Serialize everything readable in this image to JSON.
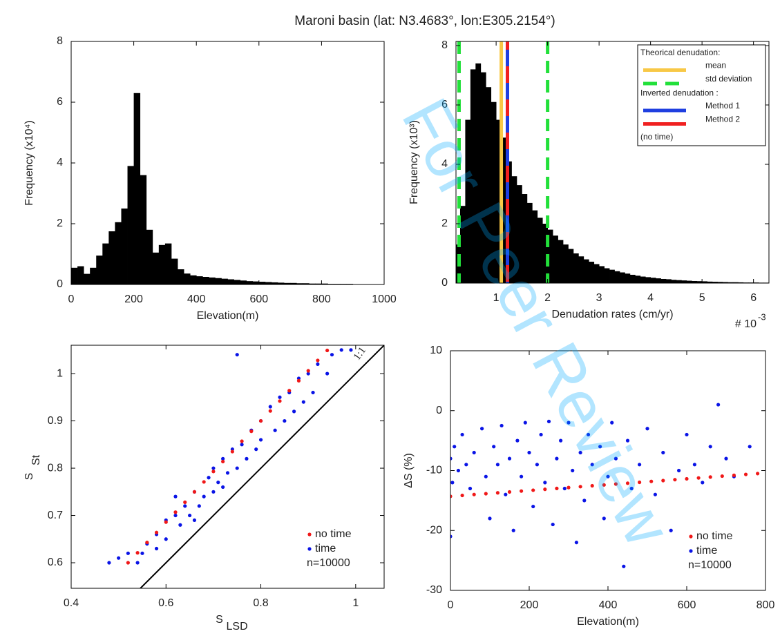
{
  "title": "Maroni basin (lat: N3.4683°, lon:E305.2154°)",
  "watermark": "For Peer Review",
  "chart_data": [
    {
      "type": "histogram",
      "xlabel": "Elevation(m)",
      "ylabel": "Frequency (x10⁴)",
      "color": "#000000",
      "xlim": [
        0,
        1000
      ],
      "ylim": [
        0,
        8
      ],
      "xticks": [
        0,
        200,
        400,
        600,
        800,
        1000
      ],
      "yticks": [
        0,
        2,
        4,
        6,
        8
      ],
      "bins": [
        0,
        20,
        40,
        60,
        80,
        100,
        120,
        140,
        160,
        180,
        200,
        220,
        240,
        260,
        280,
        300,
        320,
        340,
        360,
        380,
        400,
        420,
        440,
        460,
        480,
        500,
        520,
        540,
        560,
        580,
        600,
        620,
        640,
        660,
        680,
        700,
        720,
        740,
        760,
        780,
        800,
        820,
        840,
        860,
        880,
        900,
        920,
        940,
        960,
        980,
        1000
      ],
      "values": [
        0.55,
        0.6,
        0.35,
        0.55,
        0.95,
        1.35,
        1.75,
        2.05,
        2.5,
        3.9,
        6.3,
        3.6,
        1.8,
        1.05,
        1.3,
        1.35,
        0.85,
        0.5,
        0.36,
        0.3,
        0.27,
        0.25,
        0.23,
        0.21,
        0.19,
        0.17,
        0.15,
        0.13,
        0.11,
        0.1,
        0.09,
        0.08,
        0.07,
        0.06,
        0.05,
        0.05,
        0.04,
        0.04,
        0.03,
        0.03,
        0.03,
        0.02,
        0.02,
        0.02,
        0.02,
        0.01,
        0.01,
        0.01,
        0.01,
        0.01
      ]
    },
    {
      "type": "histogram",
      "xlabel": "Denudation rates (cm/yr)",
      "ylabel": "Frequency (x10³)",
      "color": "#000000",
      "x_multiplier": "# 10",
      "x_multiplier_exp": "-3",
      "xlim": [
        0.22,
        6.3
      ],
      "ylim": [
        0,
        8.14
      ],
      "xticks": [
        1,
        2,
        3,
        4,
        5,
        6
      ],
      "yticks": [
        0,
        2,
        4,
        6,
        8
      ],
      "bins": [
        0.2,
        0.3,
        0.4,
        0.5,
        0.6,
        0.7,
        0.8,
        0.9,
        1.0,
        1.1,
        1.2,
        1.3,
        1.4,
        1.5,
        1.6,
        1.7,
        1.8,
        1.9,
        2.0,
        2.1,
        2.2,
        2.3,
        2.4,
        2.5,
        2.6,
        2.7,
        2.8,
        2.9,
        3.0,
        3.1,
        3.2,
        3.3,
        3.4,
        3.5,
        3.6,
        3.7,
        3.8,
        3.9,
        4.0,
        4.1,
        4.2,
        4.3,
        4.4,
        4.5,
        4.6,
        4.7,
        4.8,
        4.9,
        5.0,
        5.1,
        5.2,
        5.3,
        5.4,
        5.5,
        5.6,
        5.7,
        5.8,
        5.9,
        6.0,
        6.1,
        6.2,
        6.3
      ],
      "values": [
        1.3,
        2.6,
        5.5,
        7.2,
        7.4,
        7.1,
        6.6,
        6.1,
        5.5,
        4.9,
        4.1,
        3.6,
        3.3,
        3.0,
        2.7,
        2.45,
        2.2,
        2.0,
        1.8,
        1.6,
        1.45,
        1.3,
        1.15,
        1.0,
        0.9,
        0.8,
        0.72,
        0.64,
        0.57,
        0.5,
        0.45,
        0.4,
        0.36,
        0.32,
        0.28,
        0.25,
        0.22,
        0.2,
        0.18,
        0.16,
        0.14,
        0.13,
        0.11,
        0.1,
        0.09,
        0.08,
        0.07,
        0.065,
        0.06,
        0.05,
        0.045,
        0.04,
        0.035,
        0.03,
        0.03,
        0.025,
        0.02,
        0.02,
        0.02,
        0.015,
        0.015
      ],
      "legend_headers": [
        "Theorical denudation:",
        "Inverted denudation :"
      ],
      "legend_note": "(no time)",
      "vlines": [
        {
          "name": "mean",
          "values": [
            1.1
          ],
          "color": "#f8c846",
          "style": "solid"
        },
        {
          "name": "std deviation",
          "values": [
            0.28,
            2.0
          ],
          "color": "#22e03a",
          "style": "dashed"
        },
        {
          "name": "Method 1",
          "values": [
            1.22
          ],
          "color": "#1f3fe0",
          "style": "solid"
        },
        {
          "name": "Method 2",
          "values": [
            1.22
          ],
          "color": "#f02020",
          "style": "dashed"
        }
      ]
    },
    {
      "type": "scatter",
      "xlabel": "S",
      "xlabel_sub": "LSD",
      "ylabel": "S",
      "ylabel_sub": "St",
      "xlim": [
        0.4,
        1.06
      ],
      "ylim": [
        0.546,
        1.06
      ],
      "xticks": [
        0.4,
        0.6,
        0.8,
        1
      ],
      "yticks": [
        0.6,
        0.7,
        0.8,
        0.9,
        1
      ],
      "reference_line": "1:1",
      "annotation": "n=10000",
      "series": [
        {
          "name": "time",
          "color": "#0a14e6",
          "x": [
            0.48,
            0.5,
            0.52,
            0.55,
            0.56,
            0.58,
            0.6,
            0.6,
            0.62,
            0.63,
            0.64,
            0.65,
            0.66,
            0.67,
            0.68,
            0.69,
            0.7,
            0.7,
            0.71,
            0.72,
            0.73,
            0.74,
            0.75,
            0.75,
            0.76,
            0.77,
            0.78,
            0.79,
            0.8,
            0.8,
            0.82,
            0.83,
            0.84,
            0.85,
            0.86,
            0.87,
            0.88,
            0.89,
            0.9,
            0.91,
            0.92,
            0.94,
            0.95,
            0.97,
            0.99,
            0.62,
            0.66,
            0.72,
            0.58,
            0.54
          ],
          "values": [
            0.6,
            0.61,
            0.62,
            0.62,
            0.64,
            0.66,
            0.65,
            0.69,
            0.7,
            0.68,
            0.72,
            0.7,
            0.75,
            0.72,
            0.74,
            0.78,
            0.75,
            0.8,
            0.77,
            0.82,
            0.79,
            0.84,
            0.8,
            1.04,
            0.85,
            0.82,
            0.88,
            0.84,
            0.9,
            0.86,
            0.93,
            0.88,
            0.95,
            0.9,
            0.96,
            0.92,
            0.99,
            0.94,
            1.0,
            0.96,
            1.02,
            1.0,
            1.04,
            1.05,
            1.05,
            0.74,
            0.69,
            0.76,
            0.63,
            0.6
          ]
        },
        {
          "name": "no time",
          "color": "#f01818",
          "x": [
            0.52,
            0.54,
            0.56,
            0.58,
            0.6,
            0.62,
            0.64,
            0.66,
            0.68,
            0.7,
            0.72,
            0.74,
            0.76,
            0.78,
            0.8,
            0.82,
            0.84,
            0.86,
            0.88,
            0.9,
            0.92,
            0.94
          ],
          "values": [
            0.6,
            0.621,
            0.643,
            0.664,
            0.686,
            0.707,
            0.728,
            0.75,
            0.771,
            0.793,
            0.814,
            0.835,
            0.857,
            0.878,
            0.9,
            0.921,
            0.942,
            0.964,
            0.985,
            1.006,
            1.028,
            1.049
          ]
        }
      ]
    },
    {
      "type": "scatter",
      "xlabel": "Elevation(m)",
      "ylabel": "ΔS (%)",
      "xlim": [
        0,
        800
      ],
      "ylim": [
        -30,
        10
      ],
      "xticks": [
        0,
        200,
        400,
        600,
        800
      ],
      "yticks": [
        -30,
        -20,
        -10,
        0,
        10
      ],
      "annotation": "n=10000",
      "series": [
        {
          "name": "time",
          "color": "#0a14e6",
          "x": [
            0,
            0,
            5,
            10,
            20,
            30,
            40,
            50,
            60,
            80,
            90,
            100,
            110,
            120,
            130,
            140,
            150,
            160,
            170,
            180,
            190,
            200,
            210,
            220,
            230,
            240,
            250,
            260,
            270,
            280,
            290,
            300,
            310,
            320,
            330,
            340,
            350,
            360,
            380,
            390,
            400,
            410,
            420,
            440,
            450,
            460,
            480,
            500,
            520,
            540,
            560,
            580,
            600,
            620,
            640,
            660,
            680,
            700,
            720,
            760
          ],
          "values": [
            -21,
            -8,
            -12,
            -6,
            -10,
            -4,
            -9,
            -13,
            -7,
            -3,
            -11,
            -18,
            -6,
            -9,
            -2.5,
            -14,
            -8,
            -20,
            -5,
            -11,
            -2,
            -7,
            -16,
            -9,
            -4,
            -12,
            -1.8,
            -19,
            -8,
            -5,
            -13,
            -2,
            -10,
            -22,
            -7,
            -15,
            -4,
            -9,
            -6,
            -18,
            -11,
            -2,
            -8,
            -26,
            -5,
            -13,
            -9,
            -3,
            -14,
            -7,
            -20,
            -10,
            -4,
            -9,
            -12,
            -6,
            1,
            -8,
            -11,
            -6
          ]
        },
        {
          "name": "no time",
          "color": "#f01818",
          "x": [
            0,
            30,
            60,
            90,
            120,
            150,
            180,
            210,
            240,
            270,
            300,
            330,
            360,
            390,
            420,
            450,
            480,
            510,
            540,
            570,
            600,
            630,
            660,
            690,
            720,
            750,
            780
          ],
          "values": [
            -14.3,
            -14.15,
            -14.0,
            -13.86,
            -13.72,
            -13.57,
            -13.42,
            -13.28,
            -13.13,
            -12.98,
            -12.84,
            -12.69,
            -12.54,
            -12.4,
            -12.25,
            -12.11,
            -11.96,
            -11.81,
            -11.67,
            -11.52,
            -11.38,
            -11.23,
            -11.08,
            -10.93,
            -10.79,
            -10.64,
            -10.5
          ]
        }
      ]
    }
  ]
}
